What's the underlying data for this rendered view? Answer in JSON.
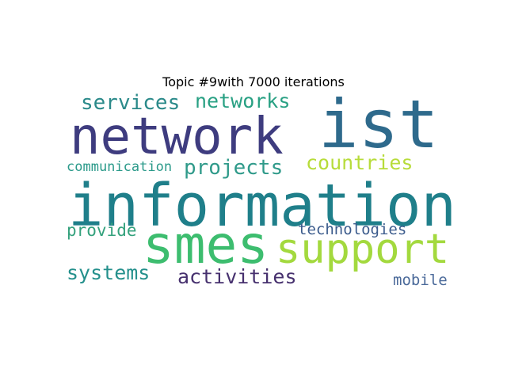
{
  "title": "Topic #9with 7000 iterations",
  "words": [
    {
      "text": "information",
      "color": "#1f7f8a"
    },
    {
      "text": "network",
      "color": "#3e3c7f"
    },
    {
      "text": "ist",
      "color": "#2e6a8c"
    },
    {
      "text": "smes",
      "color": "#3dbd6f"
    },
    {
      "text": "support",
      "color": "#a3d93e"
    },
    {
      "text": "services",
      "color": "#2b8a8a"
    },
    {
      "text": "networks",
      "color": "#28a083"
    },
    {
      "text": "projects",
      "color": "#2f9a8a"
    },
    {
      "text": "countries",
      "color": "#b7dc3a"
    },
    {
      "text": "communication",
      "color": "#2b9a8a"
    },
    {
      "text": "provide",
      "color": "#33a17c"
    },
    {
      "text": "technologies",
      "color": "#3b5b8c"
    },
    {
      "text": "systems",
      "color": "#24908c"
    },
    {
      "text": "activities",
      "color": "#46306e"
    },
    {
      "text": "mobile",
      "color": "#4b6a9a"
    }
  ]
}
